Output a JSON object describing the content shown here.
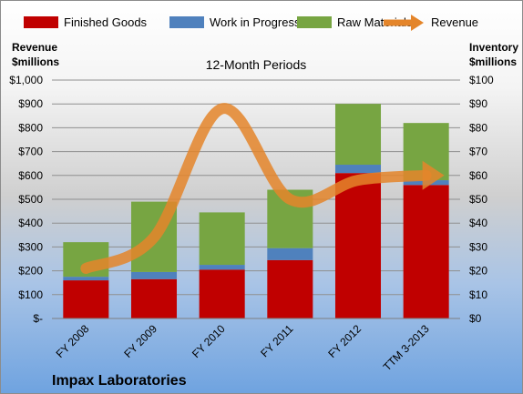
{
  "chart_data": {
    "type": "bar",
    "stacked": true,
    "subtitle": "12-Month Periods",
    "company": "Impax Laboratories",
    "ylabel_left": [
      "Revenue",
      "$millions"
    ],
    "ylabel_right": [
      "Inventory",
      "$millions"
    ],
    "categories": [
      "FY 2008",
      "FY 2009",
      "FY 2010",
      "FY 2011",
      "FY 2012",
      "TTM 3-2013"
    ],
    "left_ticks": [
      "$-",
      "$100",
      "$200",
      "$300",
      "$400",
      "$500",
      "$600",
      "$700",
      "$800",
      "$900",
      "$1,000"
    ],
    "right_ticks": [
      "$0",
      "$10",
      "$20",
      "$30",
      "$40",
      "$50",
      "$60",
      "$70",
      "$80",
      "$90",
      "$100"
    ],
    "ylim_left": [
      0,
      1000
    ],
    "ylim_right": [
      0,
      100
    ],
    "legend_position": "top",
    "series": [
      {
        "name": "Finished Goods",
        "axis": "right",
        "color": "#c00000",
        "values": [
          16,
          16.5,
          20.5,
          24.5,
          61,
          56
        ]
      },
      {
        "name": "Work in Progress",
        "axis": "right",
        "color": "#4f81bd",
        "values": [
          1.5,
          3,
          2,
          5,
          3.5,
          2
        ]
      },
      {
        "name": "Raw Materials",
        "axis": "right",
        "color": "#77a542",
        "values": [
          14.5,
          29.5,
          22,
          24.5,
          25.5,
          24
        ]
      },
      {
        "name": "Revenue",
        "axis": "left",
        "type": "line",
        "color": "#e4852a",
        "values": [
          210,
          340,
          880,
          500,
          580,
          600
        ]
      }
    ]
  }
}
